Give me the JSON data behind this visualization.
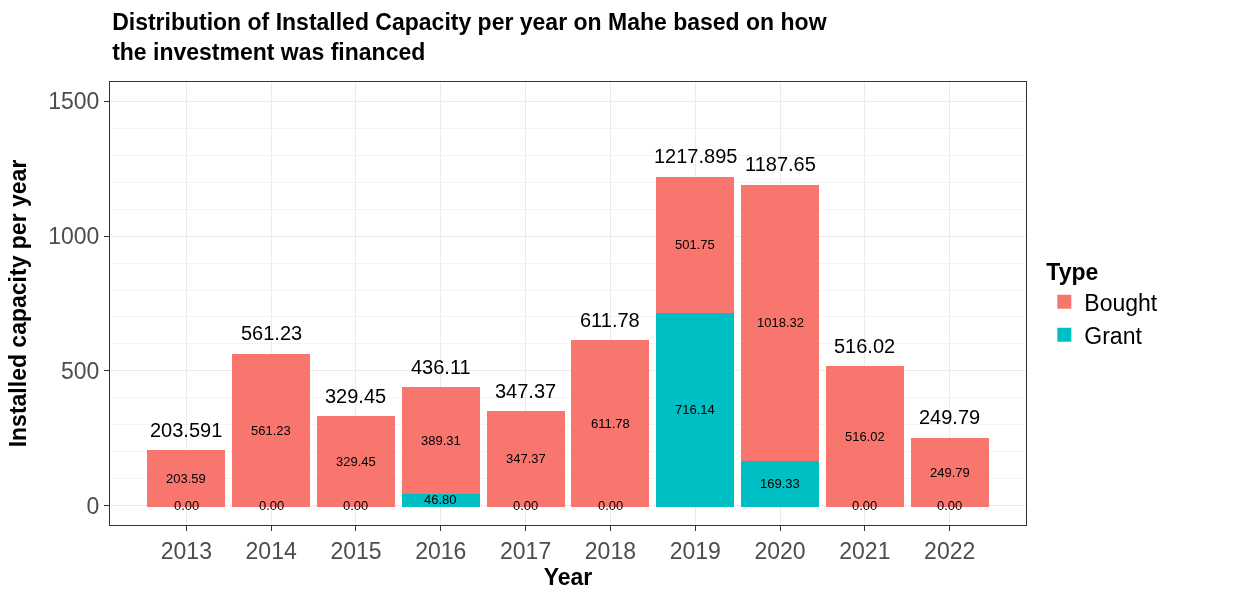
{
  "chart_data": {
    "type": "bar",
    "stacked": true,
    "title": "Distribution of Installed Capacity per year on Mahe based on how\nthe investment was financed",
    "xlabel": "Year",
    "ylabel": "Installed capacity per year",
    "legend_title": "Type",
    "legend": "right",
    "grid": true,
    "categories": [
      "2013",
      "2014",
      "2015",
      "2016",
      "2017",
      "2018",
      "2019",
      "2020",
      "2021",
      "2022"
    ],
    "series": [
      {
        "name": "Grant",
        "color": "#00bfc4",
        "values": [
          0,
          0,
          0,
          46.8,
          0,
          0,
          716.145,
          169.33,
          0,
          0
        ],
        "value_labels": [
          "0.00",
          "0.00",
          "0.00",
          "46.80",
          "0.00",
          "0.00",
          "716.14",
          "169.33",
          "0.00",
          "0.00"
        ]
      },
      {
        "name": "Bought",
        "color": "#f8766d",
        "values": [
          203.59,
          561.23,
          329.45,
          389.31,
          347.37,
          611.78,
          501.75,
          1018.32,
          516.02,
          249.79
        ],
        "value_labels": [
          "203.59",
          "561.23",
          "329.45",
          "389.31",
          "347.37",
          "611.78",
          "501.75",
          "1018.32",
          "516.02",
          "249.79"
        ]
      }
    ],
    "totals": [
      "203.591",
      "561.23",
      "329.45",
      "436.11",
      "347.37",
      "611.78",
      "1217.895",
      "1187.65",
      "516.02",
      "249.79"
    ],
    "ylim": [
      -71,
      1571
    ],
    "yticks": [
      0,
      500,
      1000,
      1500
    ]
  }
}
